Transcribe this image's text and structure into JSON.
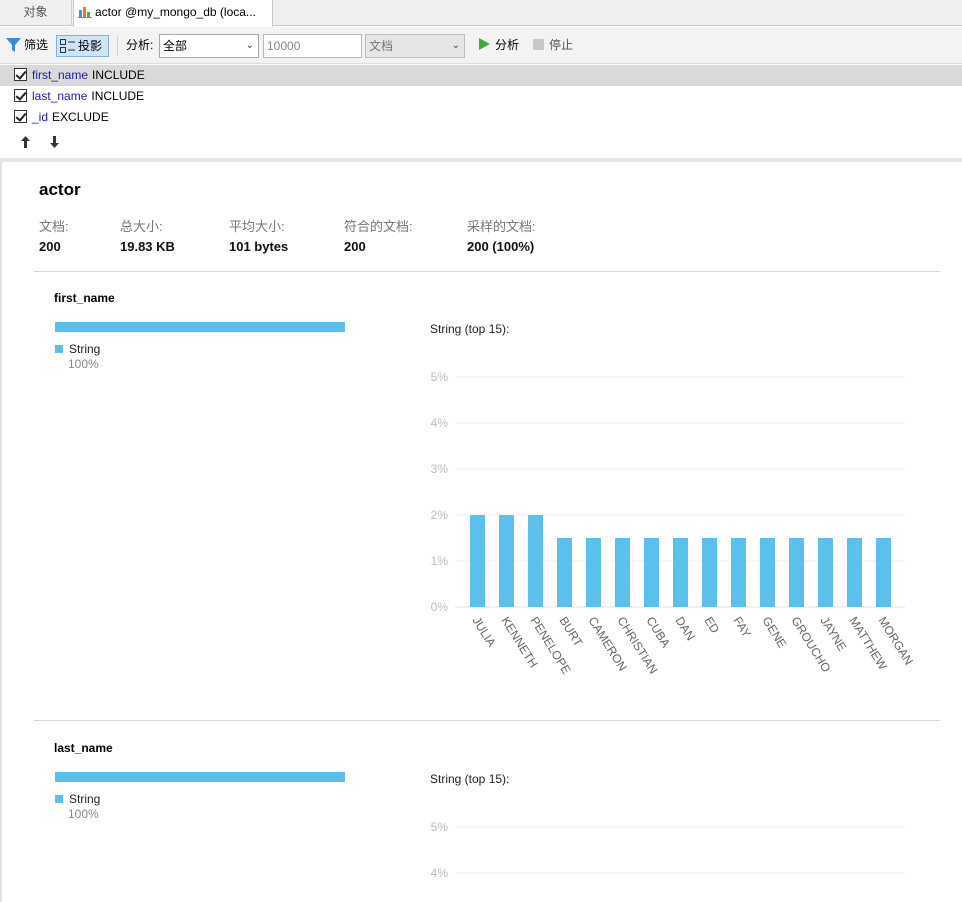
{
  "tabs": {
    "objects": "对象",
    "actor": "actor @my_mongo_db (loca..."
  },
  "toolbar": {
    "filter": "筛选",
    "project": "投影",
    "analyze_label": "分析:",
    "scope_value": "全部",
    "limit_value": "10000",
    "mode_value": "文档",
    "run": "分析",
    "stop": "停止"
  },
  "projection": {
    "rows": [
      {
        "field": "first_name",
        "mode": "INCLUDE"
      },
      {
        "field": "last_name",
        "mode": "INCLUDE"
      },
      {
        "field": "_id",
        "mode": "EXCLUDE"
      }
    ],
    "up_icon": "arrow-up-icon",
    "down_icon": "arrow-down-icon"
  },
  "report": {
    "collection": "actor",
    "stats": [
      {
        "label": "文档:",
        "value": "200"
      },
      {
        "label": "总大小:",
        "value": "19.83 KB"
      },
      {
        "label": "平均大小:",
        "value": "101 bytes"
      },
      {
        "label": "符合的文档:",
        "value": "200"
      },
      {
        "label": "采样的文档:",
        "value": "200 (100%)"
      }
    ],
    "fields": [
      {
        "name": "first_name",
        "type_name": "String",
        "type_pct": "100%",
        "chart_title": "String (top 15):"
      },
      {
        "name": "last_name",
        "type_name": "String",
        "type_pct": "100%",
        "chart_title": "String (top 15):"
      }
    ]
  },
  "colors": {
    "bar": "#5bc0eb",
    "accent_selected": "#cfe4f7",
    "run_green": "#3cae3c"
  },
  "chart_data": [
    {
      "type": "bar",
      "title": "String (top 15):",
      "categories": [
        "JULIA",
        "KENNETH",
        "PENELOPE",
        "BURT",
        "CAMERON",
        "CHRISTIAN",
        "CUBA",
        "DAN",
        "ED",
        "FAY",
        "GENE",
        "GROUCHO",
        "JAYNE",
        "MATTHEW",
        "MORGAN"
      ],
      "values": [
        2,
        2,
        2,
        1.5,
        1.5,
        1.5,
        1.5,
        1.5,
        1.5,
        1.5,
        1.5,
        1.5,
        1.5,
        1.5,
        1.5
      ],
      "ylim": [
        0,
        5
      ],
      "yticks": [
        "0%",
        "1%",
        "2%",
        "3%",
        "4%",
        "5%"
      ],
      "grid": true
    },
    {
      "type": "bar",
      "title": "String (top 15):",
      "ylim": [
        0,
        5
      ],
      "visible_yticks": [
        "4%",
        "5%"
      ],
      "grid": true
    }
  ]
}
